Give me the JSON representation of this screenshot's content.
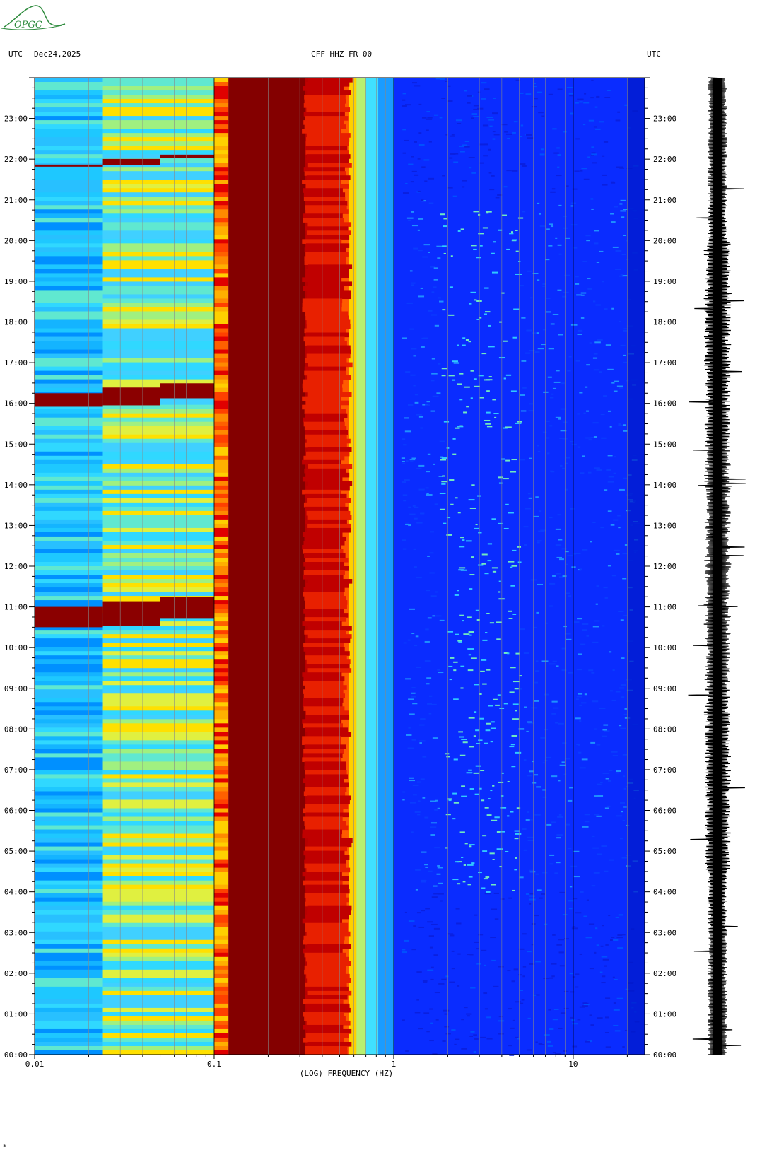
{
  "header": {
    "utc_left": "UTC",
    "date": "Dec24,2025",
    "station": "CFF HHZ FR 00",
    "utc_right": "UTC"
  },
  "logo": {
    "text": "OPGC",
    "color": "#2e8b3d"
  },
  "footer_mark": "*",
  "chart_data": {
    "type": "heatmap",
    "title": "CFF HHZ FR 00",
    "xlabel": "(LOG) FREQUENCY (HZ)",
    "x_scale": "log",
    "xlim": [
      0.01,
      25
    ],
    "x_ticks": [
      {
        "value": 0.01,
        "label": "0.01"
      },
      {
        "value": 0.1,
        "label": "0.1"
      },
      {
        "value": 1,
        "label": "1"
      },
      {
        "value": 10,
        "label": "10"
      }
    ],
    "ylim_hours": [
      0,
      24
    ],
    "y_ticks": [
      "00:00",
      "01:00",
      "02:00",
      "03:00",
      "04:00",
      "05:00",
      "06:00",
      "07:00",
      "08:00",
      "09:00",
      "10:00",
      "11:00",
      "12:00",
      "13:00",
      "14:00",
      "15:00",
      "16:00",
      "17:00",
      "18:00",
      "19:00",
      "20:00",
      "21:00",
      "22:00",
      "23:00"
    ],
    "colormap": [
      "#00008b",
      "#0000ff",
      "#1e90ff",
      "#00e5ff",
      "#7fff7f",
      "#ffff00",
      "#ff8c00",
      "#ff0000",
      "#8b0000"
    ],
    "bands": [
      {
        "f_min": 0.01,
        "f_max": 0.024,
        "level": "cyan"
      },
      {
        "f_min": 0.024,
        "f_max": 0.1,
        "level": "cyan-yellow"
      },
      {
        "f_min": 0.1,
        "f_max": 0.12,
        "level": "orange-red"
      },
      {
        "f_min": 0.12,
        "f_max": 0.32,
        "level": "dark red"
      },
      {
        "f_min": 0.32,
        "f_max": 0.65,
        "level": "red-yellow"
      },
      {
        "f_min": 0.65,
        "f_max": 1.0,
        "level": "cyan"
      },
      {
        "f_min": 1.0,
        "f_max": 25,
        "level": "blue"
      }
    ],
    "events": [
      {
        "start": "10:30",
        "end": "11:00",
        "note": "strong long-period signal"
      },
      {
        "start": "15:55",
        "end": "16:15",
        "note": "strong long-period signal"
      },
      {
        "start": "21:50",
        "end": "21:52",
        "note": "narrow long-period line"
      }
    ],
    "trace": {
      "label": "seismogram",
      "time_range": [
        "00:00",
        "24:00"
      ]
    }
  }
}
